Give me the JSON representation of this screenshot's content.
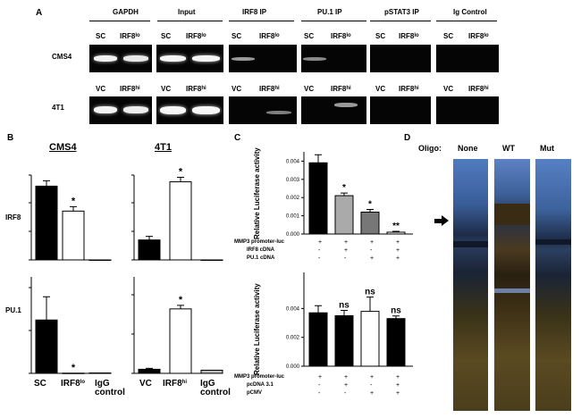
{
  "panel_A": {
    "letter": "A",
    "groups": [
      "GAPDH",
      "Input",
      "IRF8 IP",
      "PU.1 IP",
      "pSTAT3 IP",
      "Ig Control"
    ],
    "rows": [
      {
        "cell_line": "CMS4",
        "lane_left": "SC",
        "lane_right": "IRF8",
        "right_sup": "lo"
      },
      {
        "cell_line": "4T1",
        "lane_left": "VC",
        "lane_right": "IRF8",
        "right_sup": "hi"
      }
    ]
  },
  "panel_B": {
    "letter": "B",
    "col_titles": [
      "CMS4",
      "4T1"
    ],
    "row_labels": [
      "IRF8",
      "PU.1"
    ],
    "x_labels_cms4": [
      "SC",
      "IRF8",
      "IgG control"
    ],
    "x_labels_4t1": [
      "VC",
      "IRF8",
      "IgG control"
    ],
    "sup_cms4": "lo",
    "sup_4t1": "hi",
    "sig": "*"
  },
  "panel_C": {
    "letter": "C",
    "ylabel": "Relative Luciferase activity",
    "top": {
      "yticks": [
        "0.000",
        "0.001",
        "0.002",
        "0.003",
        "0.004"
      ],
      "row_labels": [
        "MMP3 promoter-luc",
        "IRF8 cDNA",
        "PU.1 cDNA"
      ],
      "row_values": [
        [
          "+",
          "+",
          "+",
          "+"
        ],
        [
          "-",
          "+",
          "-",
          "+"
        ],
        [
          "-",
          "-",
          "+",
          "+"
        ]
      ],
      "sig": [
        "",
        "*",
        "*",
        "**"
      ]
    },
    "bottom": {
      "yticks": [
        "0.000",
        "0.002",
        "0.004"
      ],
      "row_labels": [
        "MMP3 promoter-luc",
        "pcDNA 3.1",
        "pCMV"
      ],
      "row_values": [
        [
          "+",
          "+",
          "+",
          "+"
        ],
        [
          "-",
          "+",
          "-",
          "+"
        ],
        [
          "-",
          "-",
          "+",
          "+"
        ]
      ],
      "sig": [
        "",
        "ns",
        "ns",
        "ns"
      ]
    }
  },
  "panel_D": {
    "letter": "D",
    "oligo_label": "Oligo:",
    "lanes": [
      "None",
      "WT",
      "Mut"
    ]
  },
  "chart_data": [
    {
      "type": "bar",
      "title": "CMS4",
      "ylabel": "IRF8",
      "scale": "log",
      "categories": [
        "SC",
        "IRF8lo",
        "IgG control"
      ],
      "values": [
        3000,
        200,
        0
      ]
    },
    {
      "type": "bar",
      "title": "4T1",
      "ylabel": "IRF8",
      "scale": "log",
      "categories": [
        "VC",
        "IRF8hi",
        "IgG control"
      ],
      "values": [
        15,
        40000,
        0
      ]
    },
    {
      "type": "bar",
      "title": "CMS4",
      "ylabel": "PU.1",
      "categories": [
        "SC",
        "IRF8lo",
        "IgG control"
      ],
      "values": [
        28,
        0.1,
        0.2
      ],
      "ylim": [
        0,
        45
      ]
    },
    {
      "type": "bar",
      "title": "4T1",
      "ylabel": "PU.1",
      "categories": [
        "VC",
        "IRF8hi",
        "IgG control"
      ],
      "values": [
        1.3,
        20.5,
        1.0
      ],
      "ylim": [
        0,
        25
      ]
    },
    {
      "type": "bar",
      "ylabel": "Relative Luciferase activity",
      "categories": [
        "1",
        "2",
        "3",
        "4"
      ],
      "values": [
        0.0039,
        0.0021,
        0.0012,
        0.0001
      ],
      "ylim": [
        0,
        0.0045
      ]
    },
    {
      "type": "bar",
      "ylabel": "Relative Luciferase activity",
      "categories": [
        "1",
        "2",
        "3",
        "4"
      ],
      "values": [
        0.0037,
        0.0035,
        0.0038,
        0.0033
      ],
      "ylim": [
        0,
        0.0065
      ]
    }
  ]
}
